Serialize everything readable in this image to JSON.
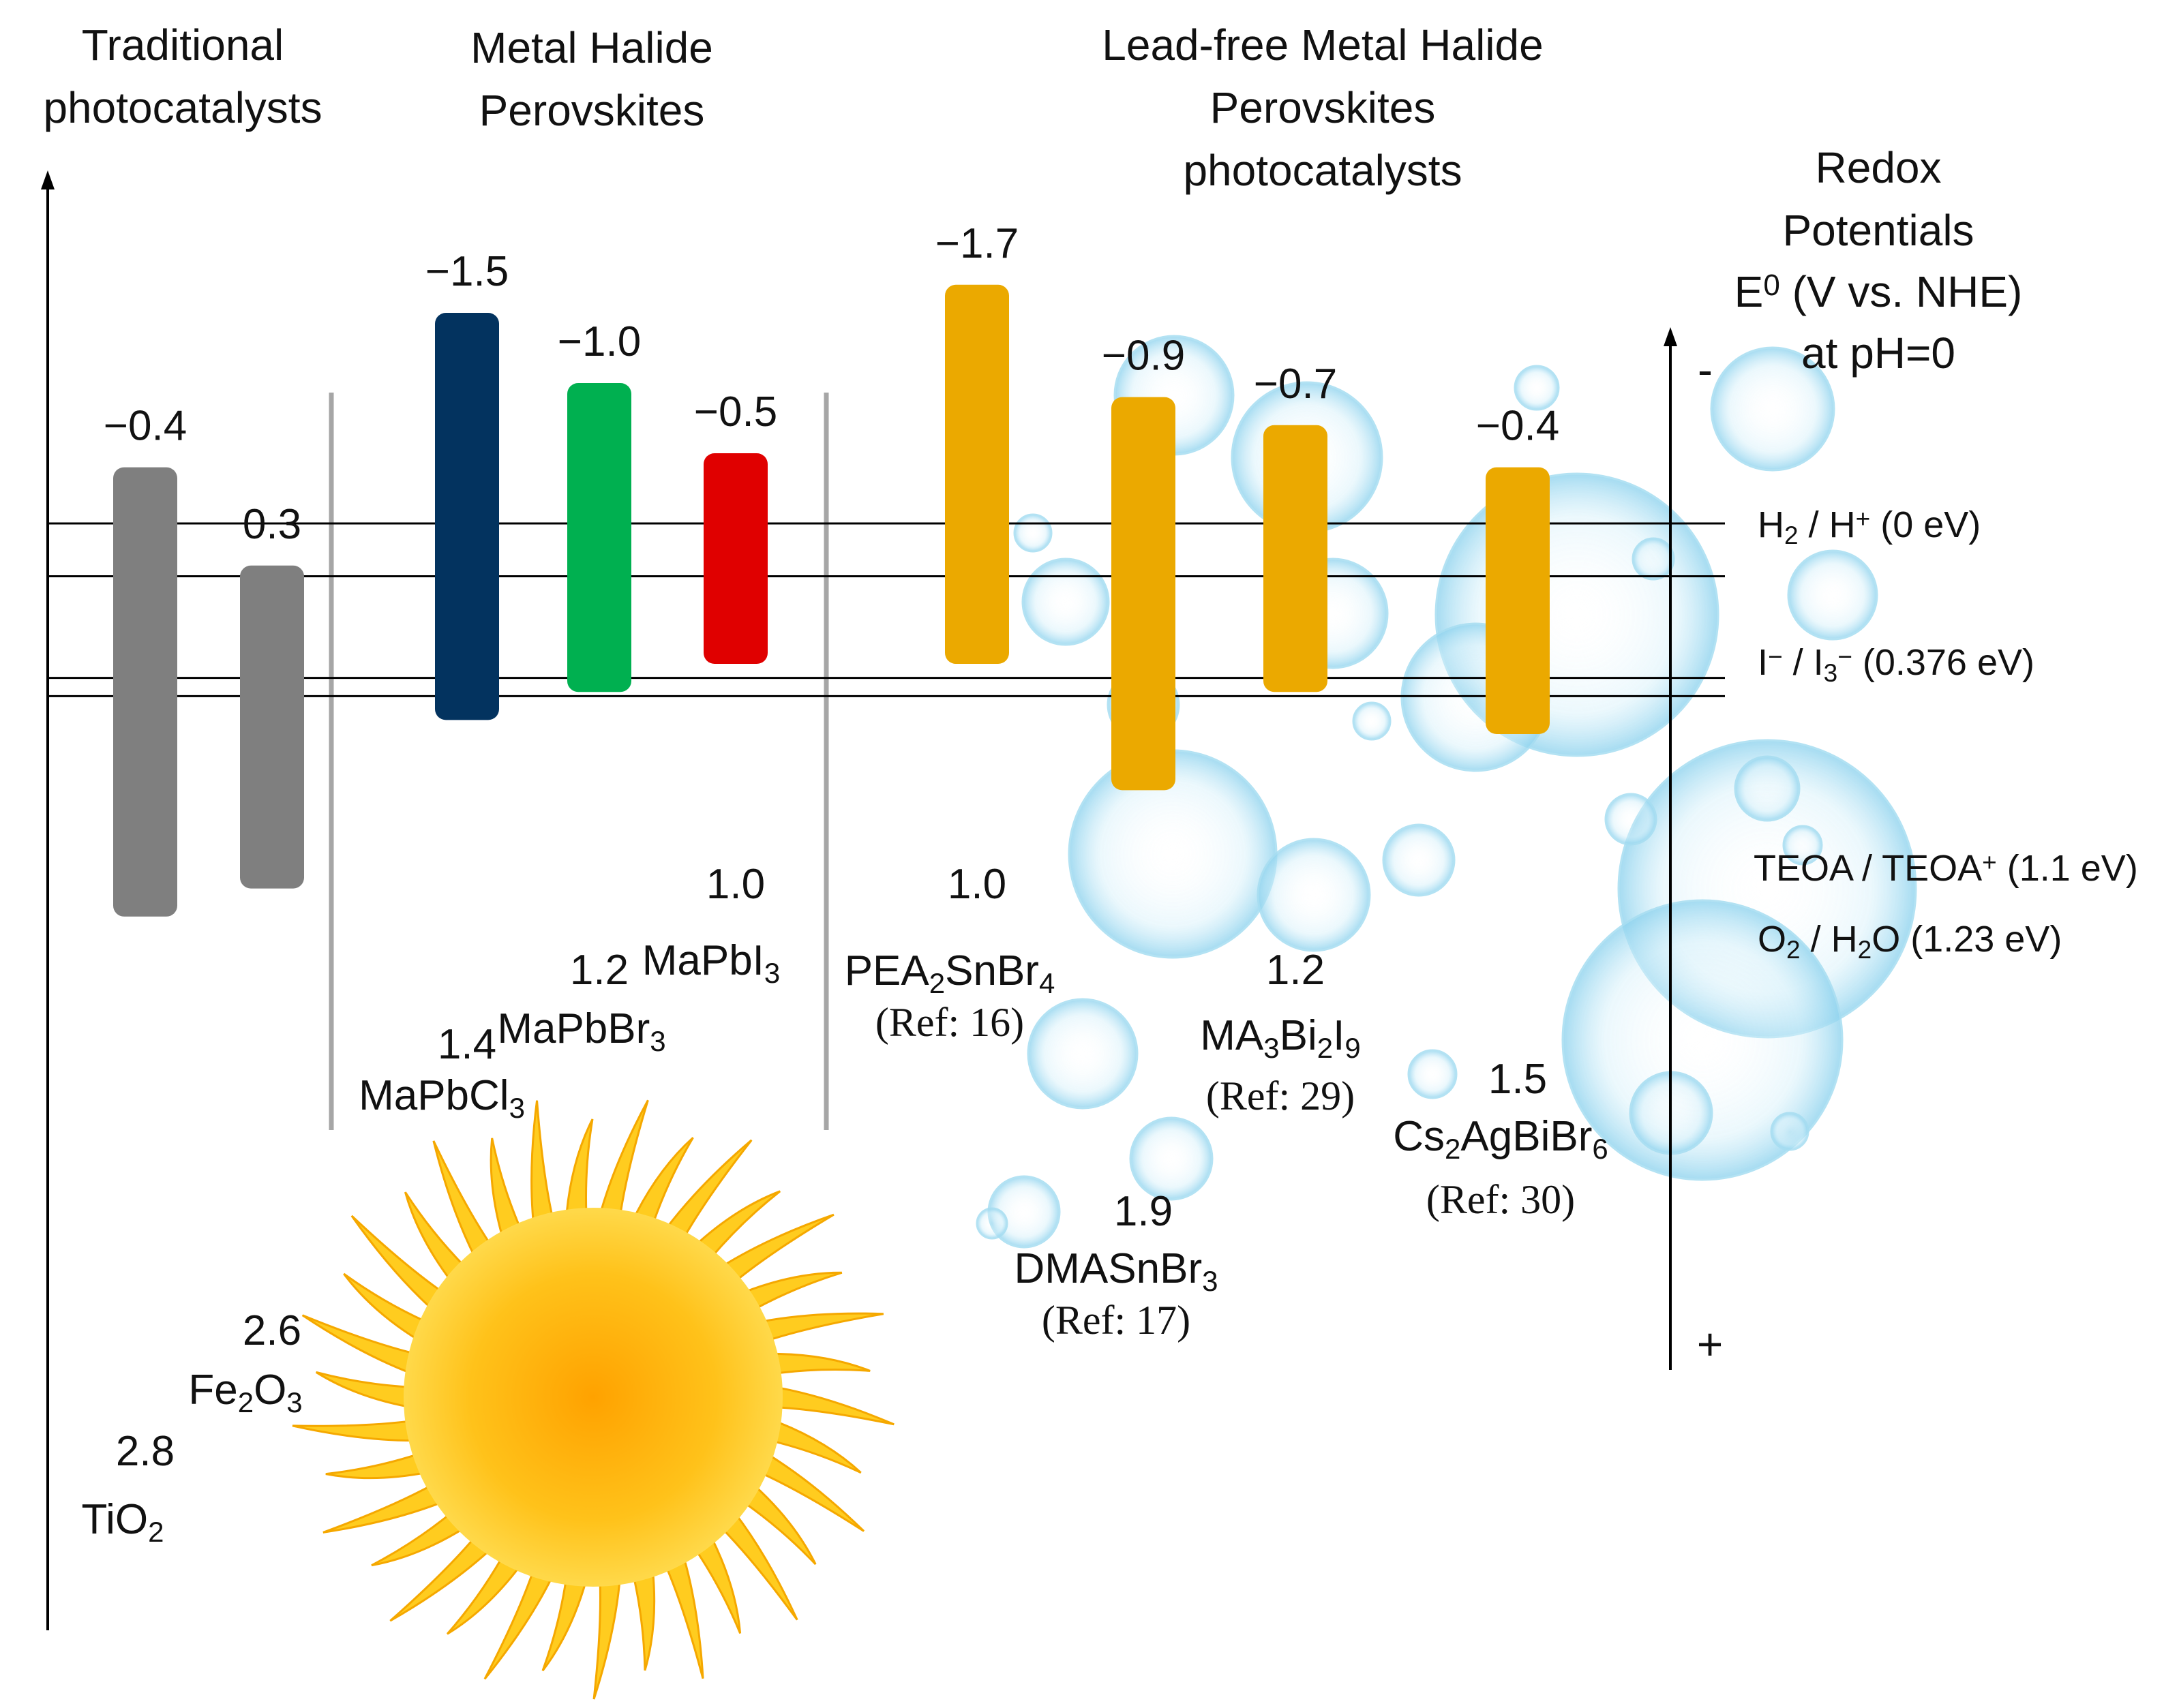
{
  "chart_data": {
    "type": "bar",
    "subtype": "band-edge floating bars",
    "title": "",
    "ylabel": "Redox Potentials E0 (V vs. NHE) at pH=0",
    "y_axis": {
      "direction": "negative-up",
      "ylim": [
        -2.0,
        3.6
      ],
      "sign_top": "-",
      "sign_bottom": "+"
    },
    "groups": [
      {
        "key": "traditional",
        "lines": [
          "Traditional",
          "photocatalysts"
        ]
      },
      {
        "key": "mhp",
        "lines": [
          "Metal Halide",
          "Perovskites"
        ]
      },
      {
        "key": "leadfree",
        "lines": [
          "Lead-free Metal Halide",
          "Perovskites",
          "photocatalysts"
        ]
      }
    ],
    "redox_title_lines": [
      "Redox",
      "Potentials",
      "E",
      "0",
      " (V vs. NHE)",
      "at pH=0"
    ],
    "series": [
      {
        "name": "TiO2",
        "name_parts": [
          [
            "TiO",
            ""
          ],
          [
            "2",
            "sub"
          ]
        ],
        "group": "traditional",
        "cb": -0.4,
        "vb": 2.8,
        "cb_label": "−0.4",
        "vb_label": "2.8",
        "color": "#7f7f7f",
        "ref": ""
      },
      {
        "name": "Fe2O3",
        "name_parts": [
          [
            "Fe",
            ""
          ],
          [
            "2",
            "sub"
          ],
          [
            "O",
            ""
          ],
          [
            "3",
            "sub"
          ]
        ],
        "group": "traditional",
        "cb": 0.3,
        "vb": 2.6,
        "cb_label": "0.3",
        "vb_label": "2.6",
        "color": "#7f7f7f",
        "ref": ""
      },
      {
        "name": "MaPbCl3",
        "name_parts": [
          [
            "MaPbCl",
            ""
          ],
          [
            "3",
            "sub"
          ]
        ],
        "group": "mhp",
        "cb": -1.5,
        "vb": 1.4,
        "cb_label": "−1.5",
        "vb_label": "1.4",
        "color": "#03335f",
        "ref": ""
      },
      {
        "name": "MaPbBr3",
        "name_parts": [
          [
            "MaPbBr",
            ""
          ],
          [
            "3",
            "sub"
          ]
        ],
        "group": "mhp",
        "cb": -1.0,
        "vb": 1.2,
        "cb_label": "−1.0",
        "vb_label": "1.2",
        "color": "#00b050",
        "ref": ""
      },
      {
        "name": "MaPbI3",
        "name_parts": [
          [
            "MaPbI",
            ""
          ],
          [
            "3",
            "sub"
          ]
        ],
        "group": "mhp",
        "cb": -0.5,
        "vb": 1.0,
        "cb_label": "−0.5",
        "vb_label": "1.0",
        "color": "#e00000",
        "ref": ""
      },
      {
        "name": "PEA2SnBr4",
        "name_parts": [
          [
            "PEA",
            ""
          ],
          [
            "2",
            "sub"
          ],
          [
            "SnBr",
            ""
          ],
          [
            "4",
            "sub"
          ]
        ],
        "group": "leadfree",
        "cb": -1.7,
        "vb": 1.0,
        "cb_label": "−1.7",
        "vb_label": "1.0",
        "color": "#eba900",
        "ref": "(Ref: 16)"
      },
      {
        "name": "DMASnBr3",
        "name_parts": [
          [
            "DMASnBr",
            ""
          ],
          [
            "3",
            "sub"
          ]
        ],
        "group": "leadfree",
        "cb": -0.9,
        "vb": 1.9,
        "cb_label": "−0.9",
        "vb_label": "1.9",
        "color": "#eba900",
        "ref": "(Ref: 17)"
      },
      {
        "name": "MA3Bi2I9",
        "name_parts": [
          [
            "MA",
            ""
          ],
          [
            "3",
            "sub"
          ],
          [
            "Bi",
            ""
          ],
          [
            "2",
            "sub"
          ],
          [
            "I",
            ""
          ],
          [
            "9",
            "sub"
          ]
        ],
        "group": "leadfree",
        "cb": -0.7,
        "vb": 1.2,
        "cb_label": "−0.7",
        "vb_label": "1.2",
        "color": "#eba900",
        "ref": "(Ref: 29)"
      },
      {
        "name": "Cs2AgBiBr6",
        "name_parts": [
          [
            "Cs",
            ""
          ],
          [
            "2",
            "sub"
          ],
          [
            "AgBiBr",
            ""
          ],
          [
            "6",
            "sub"
          ]
        ],
        "group": "leadfree",
        "cb": -0.4,
        "vb": 1.5,
        "cb_label": "−0.4",
        "vb_label": "1.5",
        "color": "#eba900",
        "ref": "(Ref: 30)"
      }
    ],
    "reference_lines": [
      {
        "name": "H2/H+",
        "value": 0.0,
        "parts": [
          [
            "H",
            ""
          ],
          [
            "2",
            "sub"
          ],
          [
            " / H",
            ""
          ],
          [
            "+",
            "sup"
          ],
          [
            " (0 eV)",
            ""
          ]
        ]
      },
      {
        "name": "I-/I3-",
        "value": 0.376,
        "parts": [
          [
            "I",
            ""
          ],
          [
            "−",
            "sup"
          ],
          [
            " / I",
            ""
          ],
          [
            "3",
            "sub"
          ],
          [
            "−",
            "sup"
          ],
          [
            " (0.376 eV)",
            ""
          ]
        ]
      },
      {
        "name": "TEOA/TEOA+",
        "value": 1.1,
        "parts": [
          [
            "TEOA / TEOA",
            ""
          ],
          [
            "+",
            "sup"
          ],
          [
            " (1.1 eV)",
            ""
          ]
        ]
      },
      {
        "name": "O2/H2O",
        "value": 1.23,
        "parts": [
          [
            "O",
            ""
          ],
          [
            "2",
            "sub"
          ],
          [
            " / H",
            ""
          ],
          [
            "2",
            "sub"
          ],
          [
            "O (1.23 eV)",
            ""
          ]
        ]
      }
    ]
  },
  "decorations": {
    "sun_icon": "sun-illustration",
    "bubbles_icon": "water-bubbles",
    "sun_color": "#fbb000",
    "bubble_color": "#9fd9ef"
  }
}
